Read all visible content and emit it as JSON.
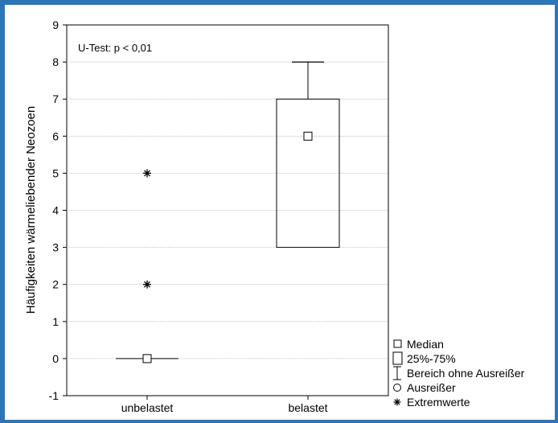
{
  "chart_data": {
    "type": "box",
    "title": "",
    "xlabel": "",
    "ylabel": "Häufigkeiten wärmeliebender Neozoen",
    "ylim": [
      -1,
      9
    ],
    "yticks": [
      -1,
      0,
      1,
      2,
      3,
      4,
      5,
      6,
      7,
      8,
      9
    ],
    "grid": true,
    "annotation": "U-Test: p < 0,01",
    "categories": [
      "unbelastet",
      "belastet"
    ],
    "groups": [
      {
        "name": "unbelastet",
        "median": 0,
        "q1": 0,
        "q3": 0,
        "whisker_low": 0,
        "whisker_high": 0,
        "outliers": [],
        "extremes": [
          2,
          5
        ]
      },
      {
        "name": "belastet",
        "median": 6,
        "q1": 3,
        "q3": 7,
        "whisker_low": 3,
        "whisker_high": 8,
        "outliers": [],
        "extremes": []
      }
    ],
    "legend_position": "bottom-right",
    "legend": [
      {
        "symbol": "square",
        "label": "Median"
      },
      {
        "symbol": "box",
        "label": "25%-75%"
      },
      {
        "symbol": "whisker",
        "label": "Bereich ohne Ausreißer"
      },
      {
        "symbol": "circle",
        "label": "Ausreißer"
      },
      {
        "symbol": "asterisk",
        "label": "Extremwerte"
      }
    ]
  }
}
